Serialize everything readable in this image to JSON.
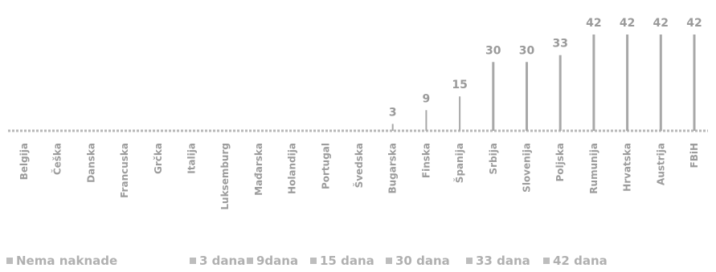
{
  "chart_data": {
    "type": "bar",
    "title": "",
    "xlabel": "",
    "ylabel": "",
    "ylim": [
      0,
      42
    ],
    "grid": false,
    "legend_position": "bottom",
    "categories": [
      "Belgija",
      "Češka",
      "Danska",
      "Francuska",
      "Grčka",
      "Italija",
      "Luksemburg",
      "Mađarska",
      "Holandija",
      "Portugal",
      "Švedska",
      "Bugarska",
      "Finska",
      "Španija",
      "Srbija",
      "Slovenija",
      "Poljska",
      "Rumunija",
      "Hrvatska",
      "Austrija",
      "FBiH"
    ],
    "values": [
      0,
      0,
      0,
      0,
      0,
      0,
      0,
      0,
      0,
      0,
      0,
      3,
      9,
      15,
      30,
      30,
      33,
      42,
      42,
      42,
      42
    ],
    "value_labels": [
      "",
      "",
      "",
      "",
      "",
      "",
      "",
      "",
      "",
      "",
      "",
      "3",
      "9",
      "15",
      "30",
      "30",
      "33",
      "42",
      "42",
      "42",
      "42"
    ],
    "legend": [
      "Nema naknade",
      "3 dana",
      "9dana",
      "15 dana",
      "30 dana",
      "33 dana",
      "42 dana"
    ],
    "colors": {
      "bar": "#a8a8a8",
      "baseline": "#b8b8b8",
      "label": "#9a9a9a",
      "legend_marker": "#bdbdbd"
    }
  }
}
